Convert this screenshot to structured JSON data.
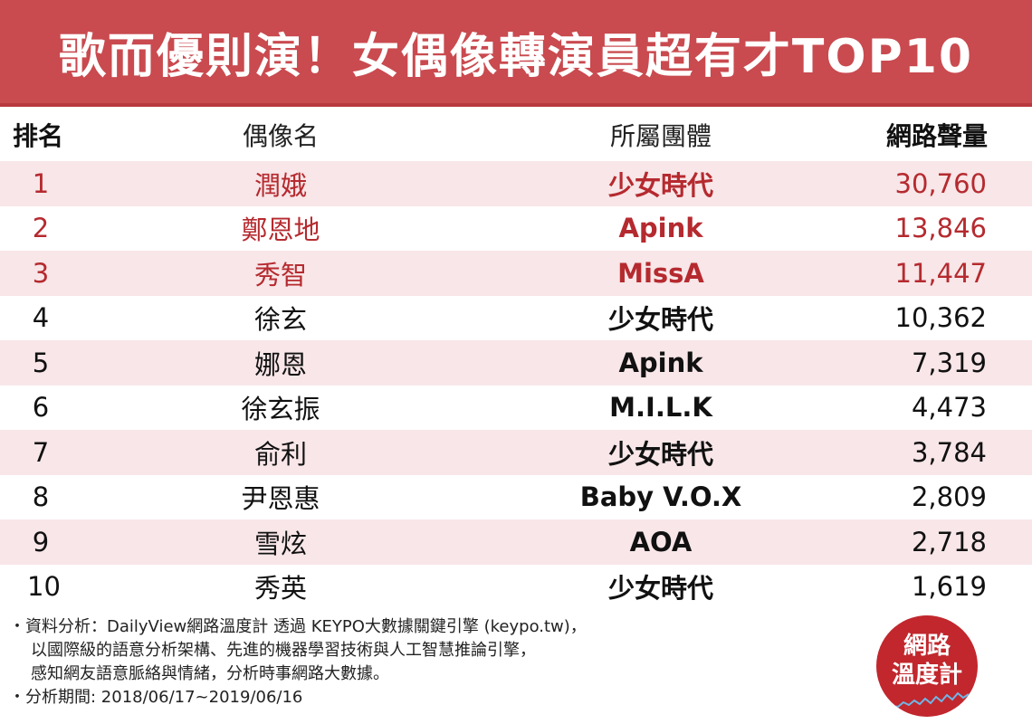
{
  "title": "歌而優則演！女偶像轉演員超有才TOP10",
  "headers": {
    "rank": "排名",
    "name": "偶像名",
    "group": "所屬團體",
    "volume": "網路聲量"
  },
  "rows": [
    {
      "rank": "1",
      "name": "潤娥",
      "group": "少女時代",
      "volume": "30,760"
    },
    {
      "rank": "2",
      "name": "鄭恩地",
      "group": "Apink",
      "volume": "13,846"
    },
    {
      "rank": "3",
      "name": "秀智",
      "group": "MissA",
      "volume": "11,447"
    },
    {
      "rank": "4",
      "name": "徐玄",
      "group": "少女時代",
      "volume": "10,362"
    },
    {
      "rank": "5",
      "name": "娜恩",
      "group": "Apink",
      "volume": "7,319"
    },
    {
      "rank": "6",
      "name": "徐玄振",
      "group": "M.I.L.K",
      "volume": "4,473"
    },
    {
      "rank": "7",
      "name": "俞利",
      "group": "少女時代",
      "volume": "3,784"
    },
    {
      "rank": "8",
      "name": "尹恩惠",
      "group": "Baby V.O.X",
      "volume": "2,809"
    },
    {
      "rank": "9",
      "name": "雪炫",
      "group": "AOA",
      "volume": "2,718"
    },
    {
      "rank": "10",
      "name": "秀英",
      "group": "少女時代",
      "volume": "1,619"
    }
  ],
  "footer": {
    "line1": "・資料分析：DailyView網路溫度計 透過 KEYPO大數據關鍵引擎 (keypo.tw)，",
    "line2": "以國際級的語意分析架構、先進的機器學習技術與人工智慧推論引擎，",
    "line3": "感知網友語意脈絡與情緒，分析時事網路大數據。",
    "line4": "・分析期間: 2018/06/17~2019/06/16"
  },
  "logo": {
    "line1": "網路",
    "line2": "溫度計"
  },
  "colors": {
    "title_bg": "#c94a4f",
    "highlight_text": "#b52a2f",
    "row_shade": "#f8e6e8",
    "logo_bg": "#c1272d"
  }
}
